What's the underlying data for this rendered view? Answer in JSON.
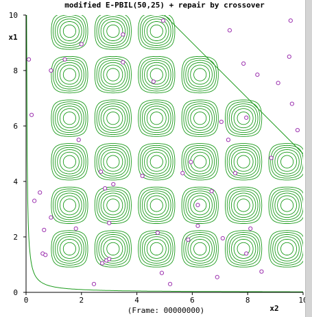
{
  "chart_data": {
    "type": "contour",
    "title": "modified E-PBIL(50,25) + repair by crossover",
    "xlabel": "x2",
    "ylabel": "x1",
    "footer": "(Frame: 00000000)",
    "xlim": [
      0,
      10
    ],
    "ylim": [
      0,
      10
    ],
    "xticks": [
      "0",
      "2",
      "4",
      "6",
      "8",
      "10"
    ],
    "yticks": [
      "0",
      "2",
      "4",
      "6",
      "8",
      "10"
    ],
    "colors": {
      "contour": "#1a9a1a",
      "points": "#9b2fae",
      "axis": "#000000",
      "title": "#000000"
    },
    "boundary_line": [
      [
        5.0,
        10.0
      ],
      [
        10.0,
        5.0
      ]
    ],
    "hyperbola_k": 0.2,
    "peak_spacing": 1.57,
    "peak_rings": 6,
    "points": [
      [
        0.1,
        8.4
      ],
      [
        0.2,
        6.4
      ],
      [
        0.3,
        3.3
      ],
      [
        0.5,
        3.6
      ],
      [
        0.6,
        1.4
      ],
      [
        0.7,
        1.35
      ],
      [
        0.65,
        2.25
      ],
      [
        0.9,
        2.7
      ],
      [
        0.9,
        8.0
      ],
      [
        1.4,
        8.4
      ],
      [
        1.8,
        2.3
      ],
      [
        1.9,
        5.5
      ],
      [
        2.0,
        8.95
      ],
      [
        2.45,
        0.3
      ],
      [
        2.7,
        4.35
      ],
      [
        2.75,
        1.05
      ],
      [
        2.85,
        3.75
      ],
      [
        2.9,
        1.15
      ],
      [
        3.0,
        1.2
      ],
      [
        3.0,
        2.5
      ],
      [
        3.15,
        3.9
      ],
      [
        3.5,
        9.3
      ],
      [
        3.5,
        8.3
      ],
      [
        4.2,
        4.2
      ],
      [
        4.6,
        7.6
      ],
      [
        4.75,
        2.15
      ],
      [
        4.9,
        0.7
      ],
      [
        4.95,
        9.8
      ],
      [
        5.2,
        0.3
      ],
      [
        5.65,
        4.3
      ],
      [
        5.85,
        1.9
      ],
      [
        5.95,
        4.7
      ],
      [
        6.2,
        3.15
      ],
      [
        6.2,
        2.4
      ],
      [
        6.7,
        3.65
      ],
      [
        6.9,
        0.55
      ],
      [
        7.05,
        6.15
      ],
      [
        7.1,
        1.95
      ],
      [
        7.3,
        5.5
      ],
      [
        7.35,
        9.45
      ],
      [
        7.55,
        4.3
      ],
      [
        7.85,
        8.25
      ],
      [
        7.95,
        1.4
      ],
      [
        8.1,
        2.3
      ],
      [
        8.35,
        7.85
      ],
      [
        8.5,
        0.75
      ],
      [
        8.85,
        4.85
      ],
      [
        9.1,
        7.55
      ],
      [
        9.5,
        8.5
      ],
      [
        9.55,
        9.8
      ],
      [
        9.6,
        6.8
      ],
      [
        9.8,
        5.85
      ],
      [
        7.95,
        6.3
      ]
    ]
  }
}
